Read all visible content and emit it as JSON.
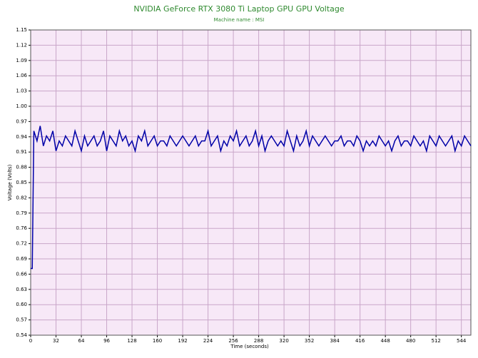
{
  "chart_data": {
    "type": "line",
    "title": "NVIDIA GeForce RTX 3080 Ti Laptop GPU GPU Voltage",
    "subtitle": "Machine name : MSI",
    "xlabel": "Time (seconds)",
    "ylabel": "Voltage (Volts)",
    "color": "#0000a8",
    "grid": true,
    "xlim": [
      0,
      556
    ],
    "xticks": [
      0,
      32,
      64,
      96,
      128,
      160,
      192,
      224,
      256,
      288,
      320,
      352,
      384,
      416,
      448,
      480,
      512,
      544
    ],
    "ylim": [
      0.5418,
      1.1518
    ],
    "yticks": [
      {
        "value": 0.5418,
        "label": "0.54"
      },
      {
        "value": 0.5723,
        "label": "0.57"
      },
      {
        "value": 0.6028,
        "label": "0.60"
      },
      {
        "value": 0.6333,
        "label": "0.63"
      },
      {
        "value": 0.6638,
        "label": "0.66"
      },
      {
        "value": 0.6943,
        "label": "0.69"
      },
      {
        "value": 0.7248,
        "label": "0.72"
      },
      {
        "value": 0.7553,
        "label": "0.76"
      },
      {
        "value": 0.7858,
        "label": "0.79"
      },
      {
        "value": 0.8163,
        "label": "0.82"
      },
      {
        "value": 0.8468,
        "label": "0.85"
      },
      {
        "value": 0.8773,
        "label": "0.88"
      },
      {
        "value": 0.9078,
        "label": "0.91"
      },
      {
        "value": 0.9383,
        "label": "0.94"
      },
      {
        "value": 0.9688,
        "label": "0.97"
      },
      {
        "value": 0.9993,
        "label": "1.00"
      },
      {
        "value": 1.0298,
        "label": "1.03"
      },
      {
        "value": 1.0603,
        "label": "1.06"
      },
      {
        "value": 1.0908,
        "label": "1.09"
      },
      {
        "value": 1.1213,
        "label": "1.12"
      },
      {
        "value": 1.1518,
        "label": "1.15"
      }
    ],
    "x": [
      0,
      2,
      4,
      8,
      12,
      16,
      20,
      24,
      28,
      32,
      36,
      40,
      44,
      48,
      52,
      56,
      60,
      64,
      68,
      72,
      76,
      80,
      84,
      88,
      92,
      96,
      100,
      104,
      108,
      112,
      116,
      120,
      124,
      128,
      132,
      136,
      140,
      144,
      148,
      152,
      156,
      160,
      164,
      168,
      172,
      176,
      180,
      184,
      188,
      192,
      196,
      200,
      204,
      208,
      212,
      216,
      220,
      224,
      228,
      232,
      236,
      240,
      244,
      248,
      252,
      256,
      260,
      264,
      268,
      272,
      276,
      280,
      284,
      288,
      292,
      296,
      300,
      304,
      308,
      312,
      316,
      320,
      324,
      328,
      332,
      336,
      340,
      344,
      348,
      352,
      356,
      360,
      364,
      368,
      372,
      376,
      380,
      384,
      388,
      392,
      396,
      400,
      404,
      408,
      412,
      416,
      420,
      424,
      428,
      432,
      436,
      440,
      444,
      448,
      452,
      456,
      460,
      464,
      468,
      472,
      476,
      480,
      484,
      488,
      492,
      496,
      500,
      504,
      508,
      512,
      516,
      520,
      524,
      528,
      532,
      536,
      540,
      544,
      548,
      552,
      556
    ],
    "values": [
      0.675,
      0.675,
      0.95,
      0.93,
      0.96,
      0.92,
      0.94,
      0.93,
      0.95,
      0.91,
      0.93,
      0.92,
      0.94,
      0.93,
      0.92,
      0.95,
      0.93,
      0.91,
      0.94,
      0.92,
      0.93,
      0.94,
      0.92,
      0.93,
      0.95,
      0.91,
      0.94,
      0.93,
      0.92,
      0.95,
      0.93,
      0.94,
      0.92,
      0.93,
      0.91,
      0.94,
      0.93,
      0.95,
      0.92,
      0.93,
      0.94,
      0.92,
      0.93,
      0.93,
      0.92,
      0.94,
      0.93,
      0.92,
      0.93,
      0.94,
      0.93,
      0.92,
      0.93,
      0.94,
      0.92,
      0.93,
      0.93,
      0.95,
      0.92,
      0.93,
      0.94,
      0.91,
      0.93,
      0.92,
      0.94,
      0.93,
      0.95,
      0.92,
      0.93,
      0.94,
      0.92,
      0.93,
      0.95,
      0.92,
      0.94,
      0.91,
      0.93,
      0.94,
      0.93,
      0.92,
      0.93,
      0.92,
      0.95,
      0.93,
      0.91,
      0.94,
      0.92,
      0.93,
      0.95,
      0.92,
      0.94,
      0.93,
      0.92,
      0.93,
      0.94,
      0.93,
      0.92,
      0.93,
      0.93,
      0.94,
      0.92,
      0.93,
      0.93,
      0.92,
      0.94,
      0.93,
      0.91,
      0.93,
      0.92,
      0.93,
      0.92,
      0.94,
      0.93,
      0.92,
      0.93,
      0.91,
      0.93,
      0.94,
      0.92,
      0.93,
      0.93,
      0.92,
      0.94,
      0.93,
      0.92,
      0.93,
      0.91,
      0.94,
      0.93,
      0.92,
      0.94,
      0.93,
      0.92,
      0.93,
      0.94,
      0.91,
      0.93,
      0.92,
      0.94,
      0.93,
      0.92
    ]
  }
}
